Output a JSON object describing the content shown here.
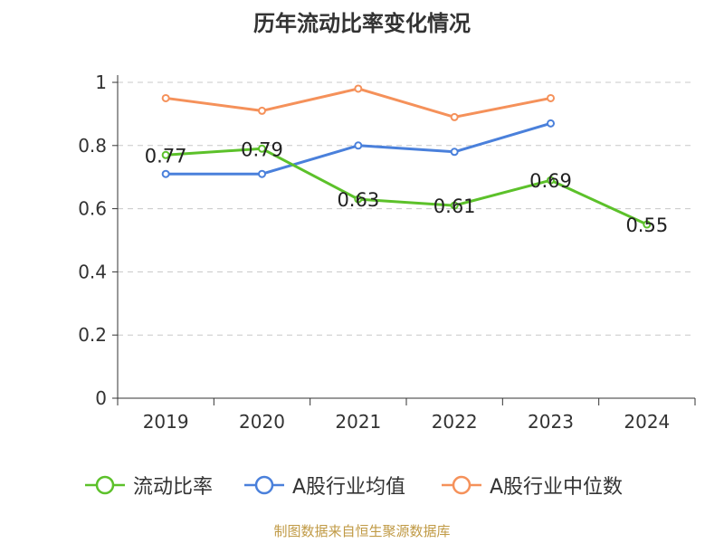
{
  "chart_data": {
    "type": "line",
    "title": "历年流动比率变化情况",
    "categories": [
      "2019",
      "2020",
      "2021",
      "2022",
      "2023",
      "2024"
    ],
    "ylim": [
      0,
      1
    ],
    "yticks": [
      "0",
      "0.2",
      "0.4",
      "0.6",
      "0.8",
      "1"
    ],
    "grid": true,
    "legend_position": "bottom",
    "series": [
      {
        "name": "流动比率",
        "color": "#5cc12a",
        "values": [
          0.77,
          0.79,
          0.63,
          0.61,
          0.69,
          0.55
        ],
        "labels": [
          "0.77",
          "0.79",
          "0.63",
          "0.61",
          "0.69",
          "0.55"
        ]
      },
      {
        "name": "A股行业均值",
        "color": "#4a80db",
        "values": [
          0.71,
          0.71,
          0.8,
          0.78,
          0.87,
          null
        ]
      },
      {
        "name": "A股行业中位数",
        "color": "#f5915a",
        "values": [
          0.95,
          0.91,
          0.98,
          0.89,
          0.95,
          null
        ]
      }
    ]
  },
  "source": "制图数据来自恒生聚源数据库"
}
